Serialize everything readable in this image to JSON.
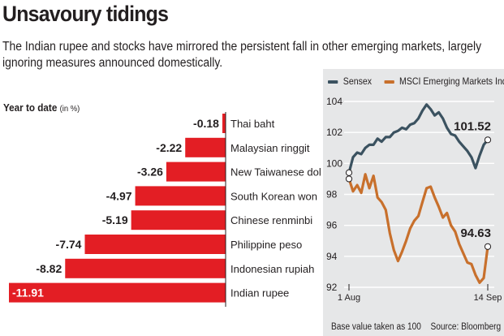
{
  "headline": "Unsavoury tidings",
  "standfirst": {
    "line1": "The Indian rupee and stocks have mirrored the persistent fall in other emerging markets, largely",
    "line2": "ignoring measures announced domestically."
  },
  "colors": {
    "bar": "#e31e24",
    "sensex": "#3b5260",
    "msci": "#c8702c",
    "panel": "#e6e7e8"
  },
  "chart_data": [
    {
      "type": "bar",
      "orientation": "horizontal",
      "title": "Year to date",
      "unit": "(in %)",
      "categories": [
        "Thai baht",
        "Malaysian ringgit",
        "New Taiwanese dollar",
        "South Korean won",
        "Chinese renminbi",
        "Philippine peso",
        "Indonesian rupiah",
        "Indian rupee"
      ],
      "values": [
        -0.18,
        -2.22,
        -3.26,
        -4.97,
        -5.19,
        -7.74,
        -8.82,
        -11.91
      ],
      "value_labels": [
        "-0.18",
        "-2.22",
        "-3.26",
        "-4.97",
        "-5.19",
        "-7.74",
        "-8.82",
        "-11.91"
      ]
    },
    {
      "type": "line",
      "x_labels": [
        "1 Aug",
        "14 Sep"
      ],
      "ylim": [
        92,
        104
      ],
      "y_ticks": [
        "104",
        "102",
        "100",
        "98",
        "96",
        "94",
        "92"
      ],
      "series": [
        {
          "name": "Sensex",
          "end_label": "101.52",
          "values": [
            99.4,
            100.4,
            100.7,
            100.6,
            101.0,
            101.2,
            101.2,
            101.6,
            101.4,
            101.7,
            101.7,
            102.0,
            102.1,
            102.3,
            102.2,
            102.5,
            102.6,
            102.9,
            103.4,
            103.8,
            103.5,
            103.1,
            103.3,
            102.9,
            102.3,
            101.9,
            101.8,
            101.4,
            101.1,
            100.8,
            100.4,
            99.7,
            100.5,
            101.2,
            101.52
          ]
        },
        {
          "name": "MSCI Emerging Markets Index",
          "end_label": "94.63",
          "values": [
            99.0,
            98.2,
            98.6,
            98.1,
            99.3,
            98.4,
            99.2,
            97.8,
            97.5,
            97.0,
            95.5,
            94.4,
            93.7,
            94.3,
            95.0,
            95.8,
            96.3,
            96.6,
            97.5,
            98.4,
            98.5,
            97.8,
            97.2,
            96.5,
            96.8,
            96.0,
            95.6,
            94.8,
            94.2,
            93.6,
            93.5,
            92.8,
            92.3,
            92.6,
            94.63
          ]
        }
      ]
    }
  ],
  "line_legend": {
    "sensex": "Sensex",
    "msci": "MSCI Emerging Markets Index"
  },
  "footnote": {
    "base": "Base value taken as 100",
    "source": "Source: Bloomberg"
  }
}
